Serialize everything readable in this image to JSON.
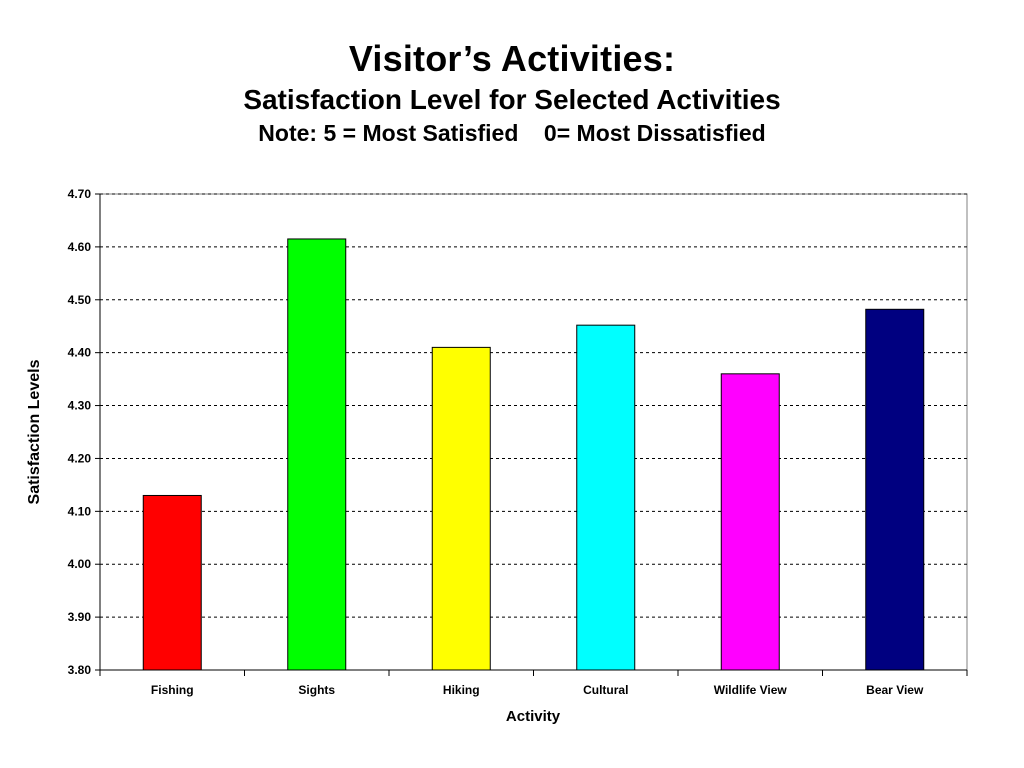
{
  "chart_data": {
    "type": "bar",
    "title": "Visitor’s Activities:",
    "subtitle": "Satisfaction Level for Selected Activities",
    "note": "Note: 5 = Most Satisfied    0= Most Dissatisfied",
    "xlabel": "Activity",
    "ylabel": "Satisfaction Levels",
    "categories": [
      "Fishing",
      "Sights",
      "Hiking",
      "Cultural",
      "Wildlife View",
      "Bear View"
    ],
    "values": [
      4.13,
      4.615,
      4.41,
      4.452,
      4.36,
      4.482
    ],
    "colors": [
      "#ff0000",
      "#00ff00",
      "#ffff00",
      "#00ffff",
      "#ff00ff",
      "#000080"
    ],
    "ylim": [
      3.8,
      4.7
    ],
    "yticks": [
      "3.80",
      "3.90",
      "4.00",
      "4.10",
      "4.20",
      "4.30",
      "4.40",
      "4.50",
      "4.60",
      "4.70"
    ],
    "grid": true,
    "grid_style": "dotted",
    "legend": "none"
  }
}
